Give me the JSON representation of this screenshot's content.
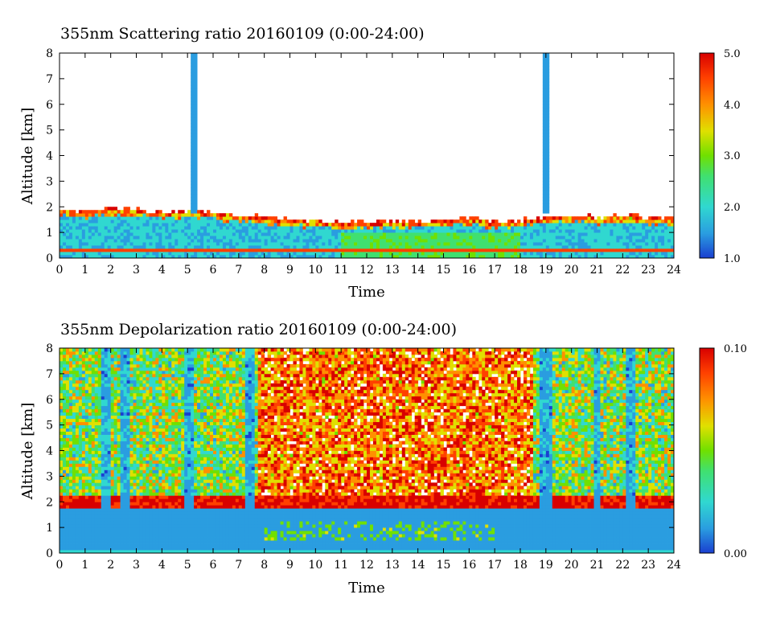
{
  "charts": [
    {
      "title": "355nm Scattering ratio  20160109 (0:00-24:00)",
      "xlabel": "Time",
      "ylabel": "Altitude [km]",
      "colorbar_labels": [
        "5.0",
        "4.0",
        "3.0",
        "2.0",
        "1.0"
      ]
    },
    {
      "title": "355nm Depolarization ratio  20160109 (0:00-24:00)",
      "xlabel": "Time",
      "ylabel": "Altitude [km]",
      "colorbar_labels": [
        "0.10",
        "0.00"
      ]
    }
  ],
  "chart_data": [
    {
      "type": "heatmap",
      "title": "355nm Scattering ratio  20160109 (0:00-24:00)",
      "xlabel": "Time",
      "ylabel": "Altitude [km]",
      "xlim": [
        0,
        24
      ],
      "ylim": [
        0,
        8
      ],
      "xticks": [
        "0",
        "1",
        "2",
        "3",
        "4",
        "5",
        "6",
        "7",
        "8",
        "9",
        "10",
        "11",
        "12",
        "13",
        "14",
        "15",
        "16",
        "17",
        "18",
        "19",
        "20",
        "21",
        "22",
        "23",
        "24"
      ],
      "yticks": [
        "0",
        "1",
        "2",
        "3",
        "4",
        "5",
        "6",
        "7",
        "8"
      ],
      "colorbar": {
        "min": 1.0,
        "max": 5.0,
        "ticks": [
          "1.0",
          "2.0",
          "3.0",
          "4.0",
          "5.0"
        ]
      },
      "colormap": [
        "#1a3fd0",
        "#2a9de0",
        "#30d8d0",
        "#40e070",
        "#70e000",
        "#e0e000",
        "#ff9000",
        "#ff4000",
        "#d80000"
      ],
      "boundary_layer_top_km": [
        [
          0,
          1.9
        ],
        [
          1,
          1.85
        ],
        [
          2,
          2.0
        ],
        [
          3,
          1.9
        ],
        [
          4,
          1.8
        ],
        [
          5,
          1.85
        ],
        [
          6,
          1.8
        ],
        [
          7,
          1.7
        ],
        [
          8,
          1.6
        ],
        [
          9,
          1.5
        ],
        [
          10,
          1.5
        ],
        [
          11,
          1.4
        ],
        [
          12,
          1.4
        ],
        [
          13,
          1.45
        ],
        [
          14,
          1.45
        ],
        [
          15,
          1.5
        ],
        [
          16,
          1.6
        ],
        [
          17,
          1.4
        ],
        [
          18,
          1.5
        ],
        [
          19,
          1.6
        ],
        [
          20,
          1.7
        ],
        [
          21,
          1.6
        ],
        [
          22,
          1.7
        ],
        [
          23,
          1.6
        ],
        [
          24,
          1.6
        ]
      ],
      "cloud_columns": [
        {
          "time": 5.2,
          "from_km": 1.8,
          "to_km": 8.0
        },
        {
          "time": 19.0,
          "from_km": 1.8,
          "to_km": 8.0
        }
      ]
    },
    {
      "type": "heatmap",
      "title": "355nm Depolarization ratio  20160109 (0:00-24:00)",
      "xlabel": "Time",
      "ylabel": "Altitude [km]",
      "xlim": [
        0,
        24
      ],
      "ylim": [
        0,
        8
      ],
      "xticks": [
        "0",
        "1",
        "2",
        "3",
        "4",
        "5",
        "6",
        "7",
        "8",
        "9",
        "10",
        "11",
        "12",
        "13",
        "14",
        "15",
        "16",
        "17",
        "18",
        "19",
        "20",
        "21",
        "22",
        "23",
        "24"
      ],
      "yticks": [
        "0",
        "1",
        "2",
        "3",
        "4",
        "5",
        "6",
        "7",
        "8"
      ],
      "colorbar": {
        "min": 0.0,
        "max": 0.1,
        "ticks": [
          "0.00",
          "0.10"
        ]
      },
      "colormap": [
        "#1a3fd0",
        "#2a9de0",
        "#30d8d0",
        "#40e070",
        "#70e000",
        "#e0e000",
        "#ff9000",
        "#ff4000",
        "#d80000"
      ],
      "low_depol_columns": [
        1.8,
        2.6,
        5.1,
        7.4,
        18.9,
        19.1,
        21.0,
        22.3
      ],
      "high_depol_period": [
        7.7,
        18.5
      ]
    }
  ]
}
